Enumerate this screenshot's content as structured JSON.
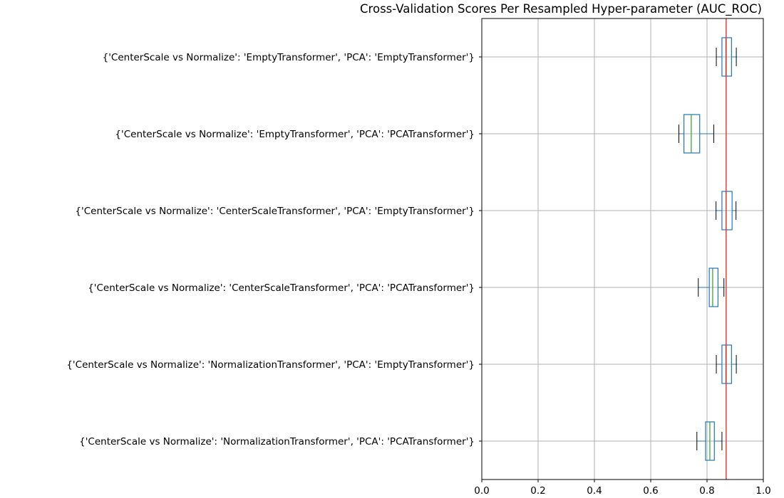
{
  "chart_data": {
    "type": "boxplot",
    "orientation": "horizontal",
    "title": "Cross-Validation Scores Per Resampled Hyper-parameter (AUC_ROC)",
    "xlabel": "",
    "ylabel": "",
    "xlim": [
      0.0,
      1.0
    ],
    "xticks": [
      0.0,
      0.2,
      0.4,
      0.6,
      0.8,
      1.0
    ],
    "xtick_labels": [
      "0.0",
      "0.2",
      "0.4",
      "0.6",
      "0.8",
      "1.0"
    ],
    "grid": true,
    "reference_line": {
      "x": 0.868,
      "color": "#d62728"
    },
    "colors": {
      "box": "#1f77b4",
      "median": "#2ca02c",
      "whisker_cap": "#000000",
      "highlight_label": "#ff0000",
      "grid": "#b0b0b0"
    },
    "boxes": [
      {
        "label": "{'CenterScale vs Normalize': 'EmptyTransformer', 'PCA': 'EmptyTransformer'}",
        "whisker_low": 0.833,
        "q1": 0.853,
        "median": 0.867,
        "q3": 0.887,
        "whisker_high": 0.904,
        "highlight": false
      },
      {
        "label": "{'CenterScale vs Normalize': 'EmptyTransformer', 'PCA': 'PCATransformer'}",
        "whisker_low": 0.7,
        "q1": 0.718,
        "median": 0.744,
        "q3": 0.774,
        "whisker_high": 0.824,
        "highlight": false
      },
      {
        "label": "{'CenterScale vs Normalize': 'CenterScaleTransformer', 'PCA': 'EmptyTransformer'}",
        "whisker_low": 0.832,
        "q1": 0.853,
        "median": 0.868,
        "q3": 0.889,
        "whisker_high": 0.903,
        "highlight": true
      },
      {
        "label": "{'CenterScale vs Normalize': 'CenterScaleTransformer', 'PCA': 'PCATransformer'}",
        "whisker_low": 0.769,
        "q1": 0.808,
        "median": 0.82,
        "q3": 0.839,
        "whisker_high": 0.86,
        "highlight": false
      },
      {
        "label": "{'CenterScale vs Normalize': 'NormalizationTransformer', 'PCA': 'EmptyTransformer'}",
        "whisker_low": 0.833,
        "q1": 0.853,
        "median": 0.867,
        "q3": 0.887,
        "whisker_high": 0.904,
        "highlight": false
      },
      {
        "label": "{'CenterScale vs Normalize': 'NormalizationTransformer', 'PCA': 'PCATransformer'}",
        "whisker_low": 0.764,
        "q1": 0.795,
        "median": 0.81,
        "q3": 0.826,
        "whisker_high": 0.853,
        "highlight": false
      }
    ]
  }
}
